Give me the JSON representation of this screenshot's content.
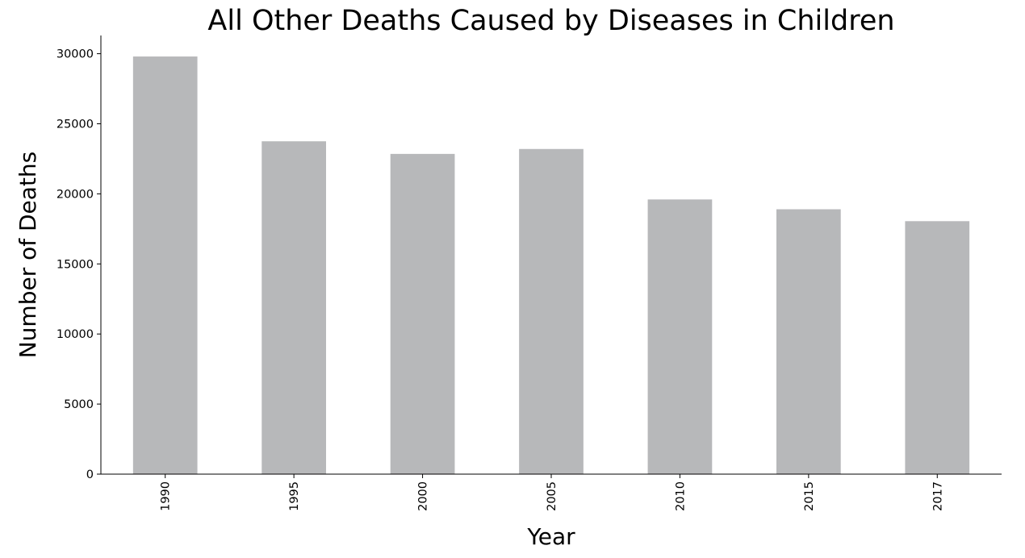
{
  "chart_data": {
    "type": "bar",
    "title": "All Other Deaths Caused by Diseases in Children",
    "xlabel": "Year",
    "ylabel": "Number of Deaths",
    "categories": [
      "1990",
      "1995",
      "2000",
      "2005",
      "2010",
      "2015",
      "2017"
    ],
    "values": [
      29800,
      23750,
      22850,
      23200,
      19600,
      18900,
      18050
    ],
    "ylim": [
      0,
      31300
    ],
    "yticks": [
      0,
      5000,
      10000,
      15000,
      20000,
      25000,
      30000
    ],
    "bar_color": "#b7b8ba",
    "grid": false,
    "legend": "none"
  }
}
